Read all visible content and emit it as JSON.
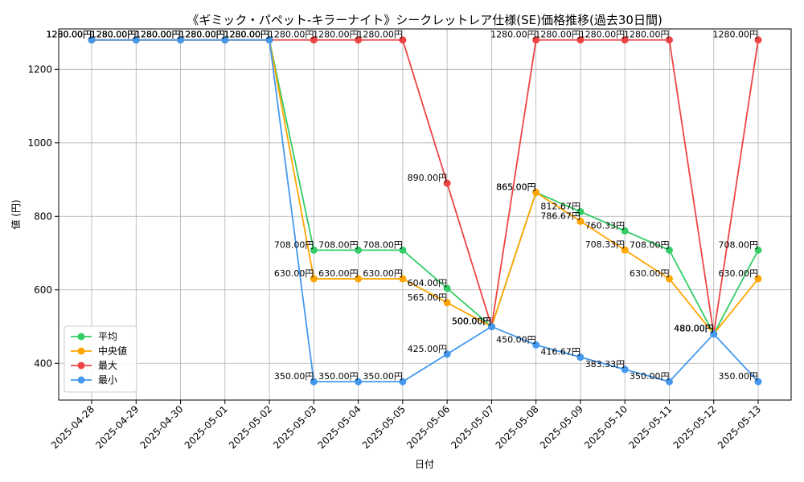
{
  "chart_data": {
    "type": "line",
    "title": "《ギミック・パペット-キラーナイト》シークレットレア仕様(SE)価格推移(過去30日間)",
    "xlabel": "日付",
    "ylabel": "値 (円)",
    "ylim": [
      300,
      1310
    ],
    "yticks": [
      400,
      600,
      800,
      1000,
      1200
    ],
    "grid": true,
    "legend_position": "lower-left",
    "label_suffix": "円",
    "categories": [
      "2025-04-28",
      "2025-04-29",
      "2025-04-30",
      "2025-05-01",
      "2025-05-02",
      "2025-05-03",
      "2025-05-04",
      "2025-05-05",
      "2025-05-06",
      "2025-05-07",
      "2025-05-08",
      "2025-05-09",
      "2025-05-10",
      "2025-05-11",
      "2025-05-12",
      "2025-05-13"
    ],
    "series": [
      {
        "name": "平均",
        "color": "#33cc66",
        "values": [
          1280.0,
          1280.0,
          1280.0,
          1280.0,
          1280.0,
          708.0,
          708.0,
          708.0,
          604.0,
          500.0,
          865.0,
          812.67,
          760.33,
          708.0,
          480.0,
          708.0
        ]
      },
      {
        "name": "中央値",
        "color": "#ffa500",
        "values": [
          1280.0,
          1280.0,
          1280.0,
          1280.0,
          1280.0,
          630.0,
          630.0,
          630.0,
          565.0,
          500.0,
          865.0,
          786.67,
          708.33,
          630.0,
          480.0,
          630.0
        ]
      },
      {
        "name": "最大",
        "color": "#ee4444",
        "values": [
          1280.0,
          1280.0,
          1280.0,
          1280.0,
          1280.0,
          1280.0,
          1280.0,
          1280.0,
          890.0,
          500.0,
          1280.0,
          1280.0,
          1280.0,
          1280.0,
          480.0,
          1280.0
        ]
      },
      {
        "name": "最小",
        "color": "#4499ee",
        "values": [
          1280.0,
          1280.0,
          1280.0,
          1280.0,
          1280.0,
          350.0,
          350.0,
          350.0,
          425.0,
          500.0,
          450.0,
          416.67,
          383.33,
          350.0,
          480.0,
          350.0
        ]
      }
    ]
  }
}
